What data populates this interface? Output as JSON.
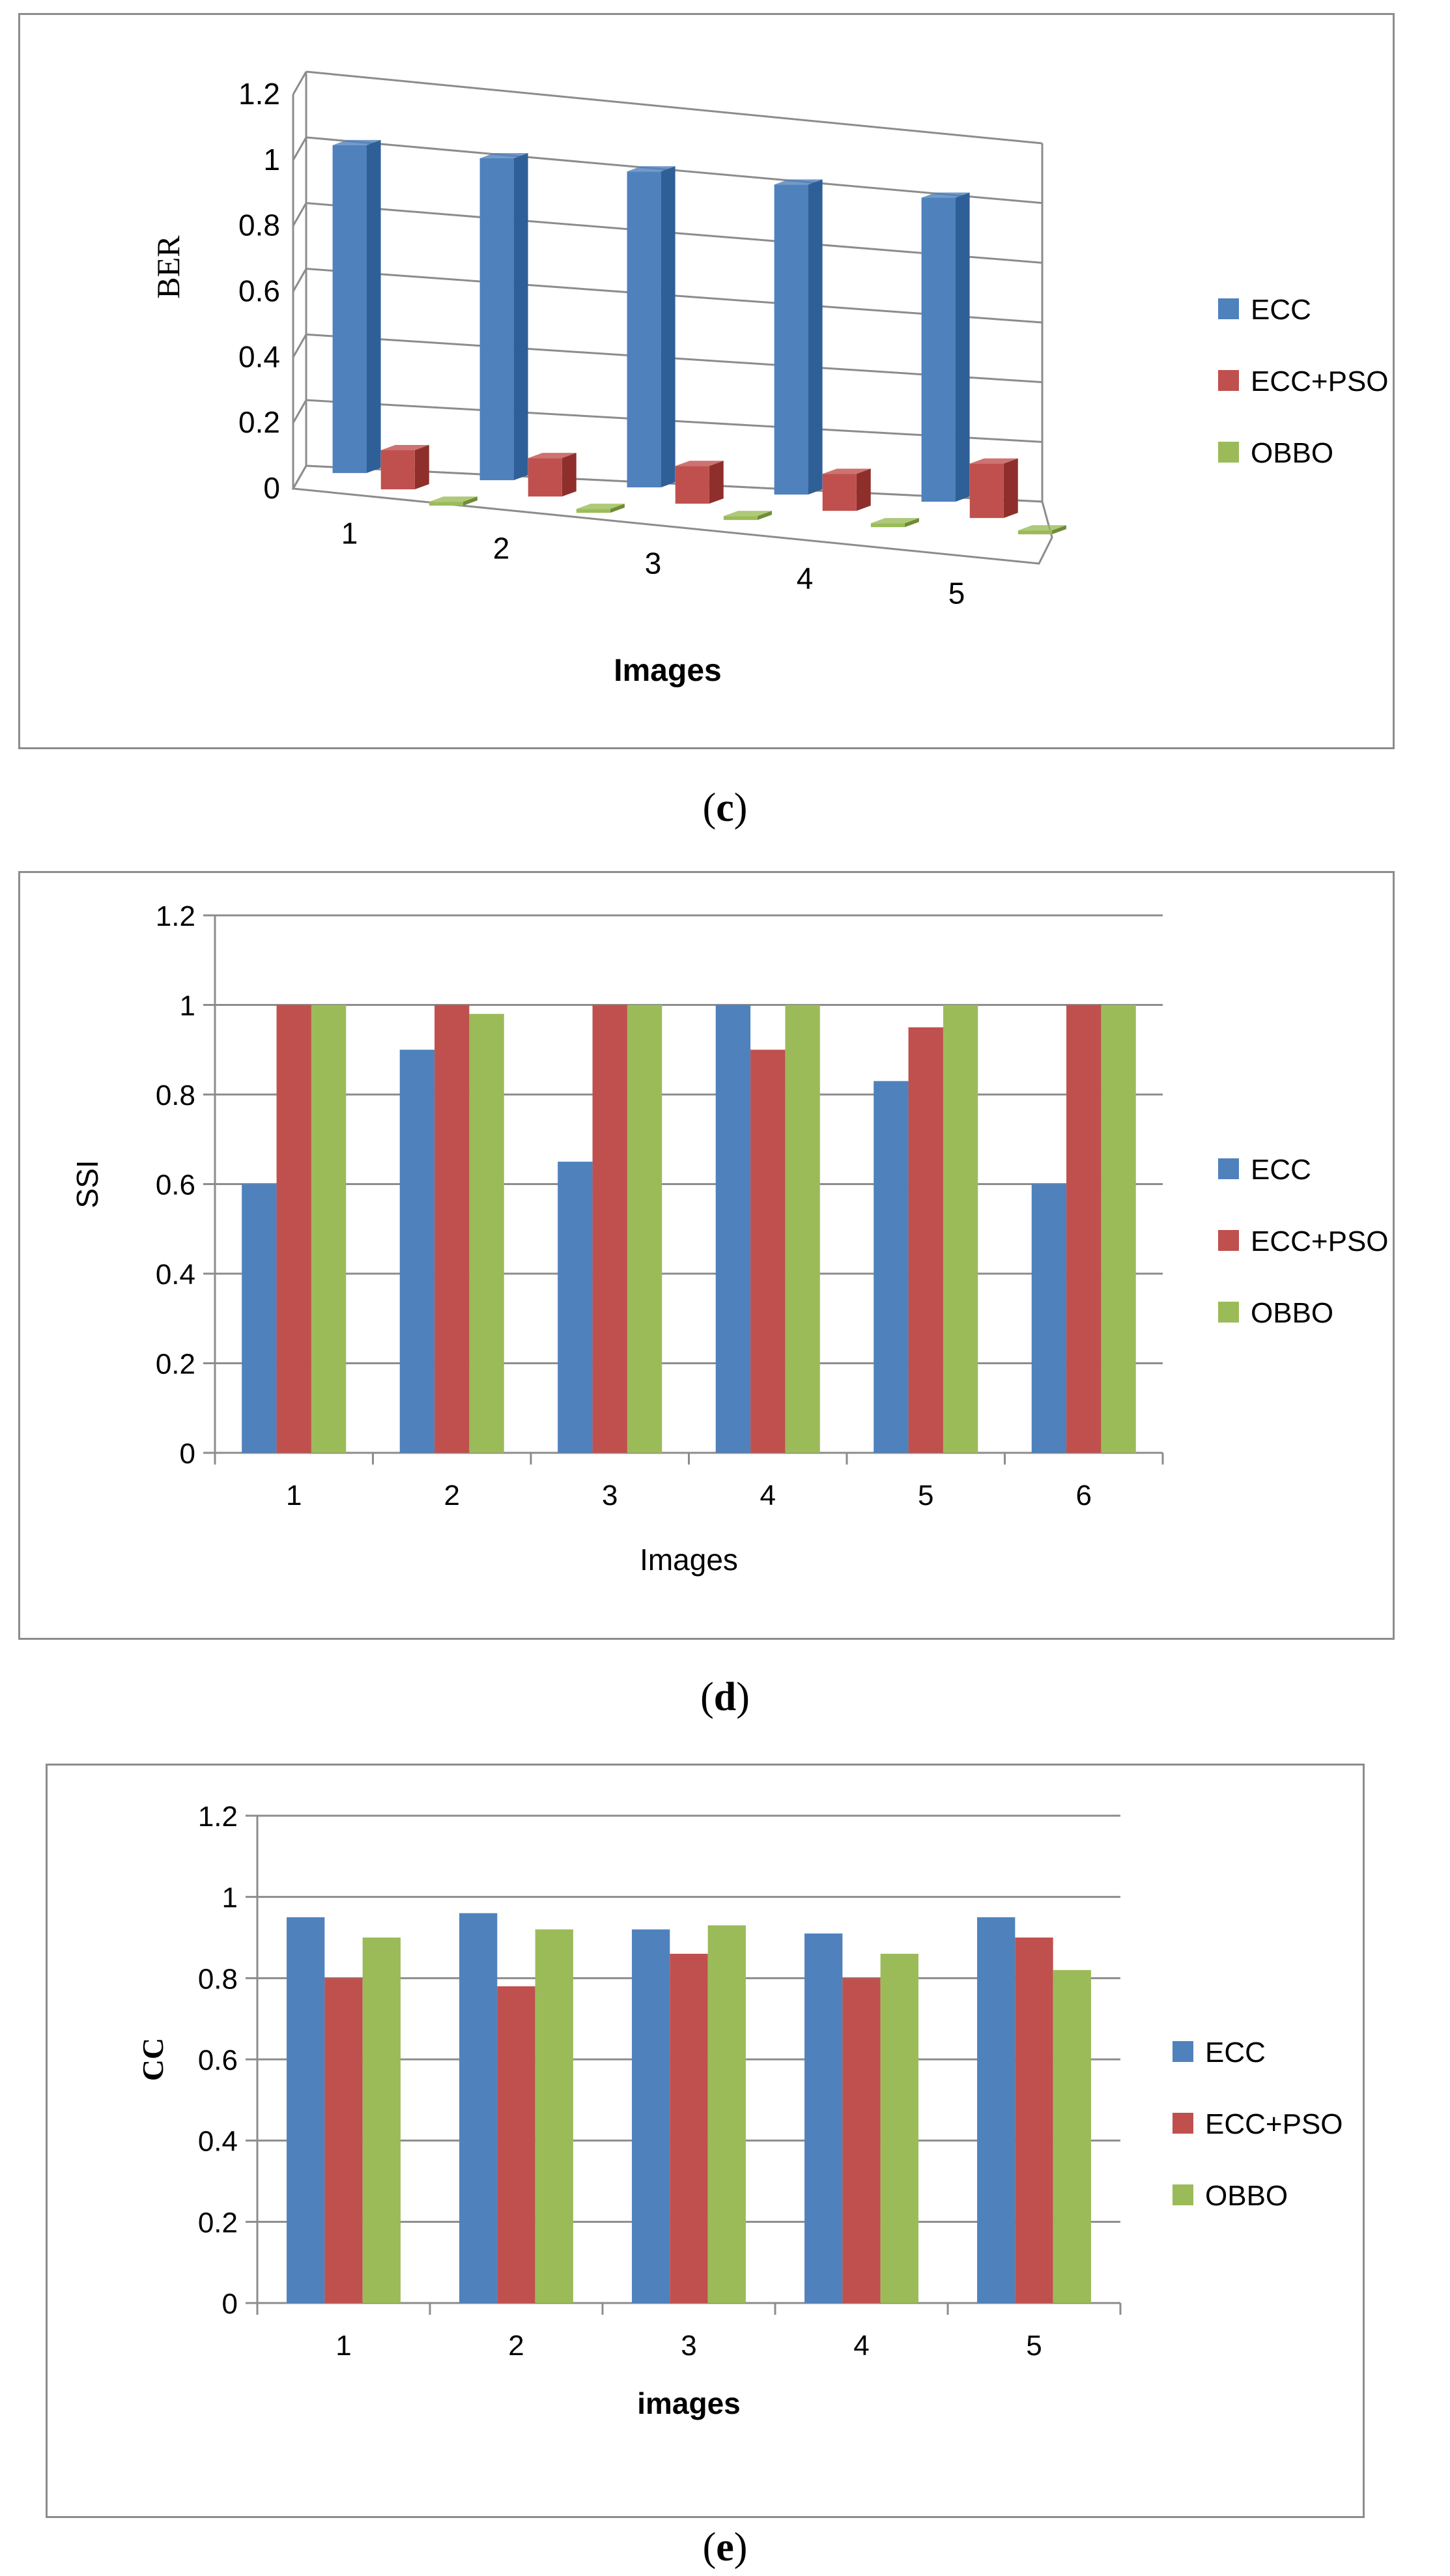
{
  "colors": {
    "ecc": "#4F81BD",
    "ecc_pso": "#C0504D",
    "obbo": "#9BBB59",
    "ecc_side": "#2F5F97",
    "ecc_pso_side": "#8E2F2C",
    "obbo_side": "#6F8C34"
  },
  "legend_labels": [
    "ECC",
    "ECC+PSO",
    "OBBO"
  ],
  "chart_data": [
    {
      "id": "c",
      "type": "bar",
      "style": "3d-column",
      "caption_letter": "c",
      "title": "",
      "xlabel": "Images",
      "ylabel": "BER",
      "ylim": [
        0,
        1.2
      ],
      "yticks": [
        "0",
        "0.2",
        "0.4",
        "0.6",
        "0.8",
        "1",
        "1.2"
      ],
      "categories": [
        "1",
        "2",
        "3",
        "4",
        "5"
      ],
      "series": [
        {
          "name": "ECC",
          "values": [
            1.0,
            1.0,
            1.0,
            1.0,
            1.0
          ]
        },
        {
          "name": "ECC+PSO",
          "values": [
            0.12,
            0.12,
            0.12,
            0.12,
            0.18
          ]
        },
        {
          "name": "OBBO",
          "values": [
            0.0,
            0.0,
            0.0,
            0.01,
            0.0
          ]
        }
      ],
      "legend_position": "right",
      "grid": true
    },
    {
      "id": "d",
      "type": "bar",
      "style": "clustered-column",
      "caption_letter": "d",
      "title": "",
      "xlabel": "Images",
      "ylabel": "SSI",
      "ylim": [
        0,
        1.2
      ],
      "yticks": [
        "0",
        "0.2",
        "0.4",
        "0.6",
        "0.8",
        "1",
        "1.2"
      ],
      "categories": [
        "1",
        "2",
        "3",
        "4",
        "5",
        "6"
      ],
      "series": [
        {
          "name": "ECC",
          "values": [
            0.6,
            0.9,
            0.65,
            1.0,
            0.83,
            0.6
          ]
        },
        {
          "name": "ECC+PSO",
          "values": [
            1.0,
            1.0,
            1.0,
            0.9,
            0.95,
            1.0
          ]
        },
        {
          "name": "OBBO",
          "values": [
            1.0,
            0.98,
            1.0,
            1.0,
            1.0,
            1.0
          ]
        }
      ],
      "legend_position": "right",
      "grid": true
    },
    {
      "id": "e",
      "type": "bar",
      "style": "clustered-column",
      "caption_letter": "e",
      "title": "",
      "xlabel": "images",
      "ylabel": "CC",
      "ylim": [
        0,
        1.2
      ],
      "yticks": [
        "0",
        "0.2",
        "0.4",
        "0.6",
        "0.8",
        "1",
        "1.2"
      ],
      "categories": [
        "1",
        "2",
        "3",
        "4",
        "5"
      ],
      "series": [
        {
          "name": "ECC",
          "values": [
            0.95,
            0.96,
            0.92,
            0.91,
            0.95
          ]
        },
        {
          "name": "ECC+PSO",
          "values": [
            0.8,
            0.78,
            0.86,
            0.8,
            0.9
          ]
        },
        {
          "name": "OBBO",
          "values": [
            0.9,
            0.92,
            0.93,
            0.86,
            0.82
          ]
        }
      ],
      "legend_position": "right",
      "grid": true
    }
  ]
}
